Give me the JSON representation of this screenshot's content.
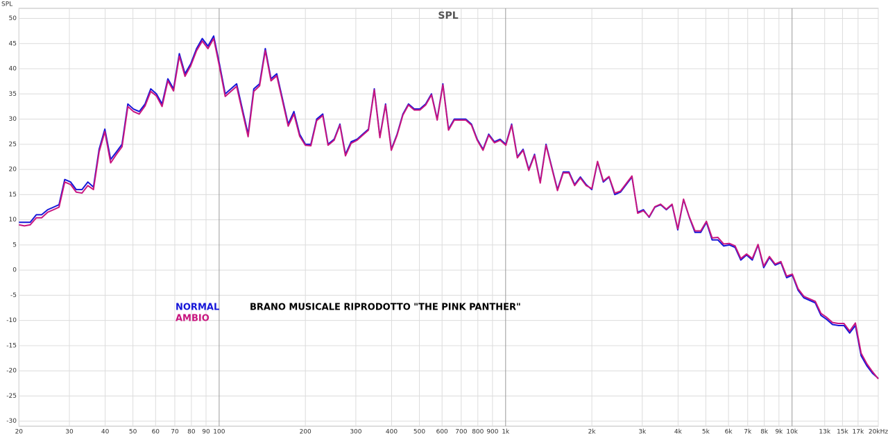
{
  "chart_data": {
    "type": "line",
    "title": "SPL",
    "y_label": "SPL",
    "annotation": "BRANO MUSICALE RIPRODOTTO \"THE PINK PANTHER\"",
    "xscale": "log",
    "grid": true,
    "xlim": [
      20,
      20000
    ],
    "ylim": [
      -31,
      52
    ],
    "xticks": [
      20,
      30,
      40,
      50,
      60,
      70,
      80,
      90,
      100,
      200,
      300,
      400,
      500,
      600,
      700,
      800,
      900,
      {
        "value": 1000,
        "label": "1k"
      },
      {
        "value": 2000,
        "label": "2k"
      },
      {
        "value": 3000,
        "label": "3k"
      },
      {
        "value": 4000,
        "label": "4k"
      },
      {
        "value": 5000,
        "label": "5k"
      },
      {
        "value": 6000,
        "label": "6k"
      },
      {
        "value": 7000,
        "label": "7k"
      },
      {
        "value": 8000,
        "label": "8k"
      },
      {
        "value": 9000,
        "label": "9k"
      },
      {
        "value": 10000,
        "label": "10k"
      },
      {
        "value": 13000,
        "label": "13k"
      },
      {
        "value": 15000,
        "label": "15k"
      },
      {
        "value": 17000,
        "label": "17k"
      },
      {
        "value": 20000,
        "label": "20kHz"
      }
    ],
    "yticks": [
      -30,
      -25,
      -20,
      -15,
      -10,
      -5,
      0,
      5,
      10,
      15,
      20,
      25,
      30,
      35,
      40,
      45,
      50
    ],
    "x": [
      20,
      20.9,
      21.9,
      23,
      24,
      25.2,
      26.4,
      27.6,
      28.9,
      30.3,
      31.7,
      33.2,
      34.8,
      36.4,
      38.1,
      39.9,
      41.8,
      43.8,
      45.8,
      48,
      50.2,
      52.6,
      55.1,
      57.7,
      60.4,
      63.2,
      66.2,
      69.3,
      72.6,
      76,
      79.6,
      83.4,
      87.3,
      91.4,
      95.7,
      100.2,
      105,
      109.9,
      115.1,
      120.5,
      126.2,
      132.1,
      138.4,
      144.9,
      151.7,
      158.9,
      166.4,
      174.2,
      182.4,
      191,
      200,
      209,
      219,
      230,
      240,
      252,
      264,
      276,
      289,
      303,
      317,
      332,
      348,
      364,
      381,
      399,
      418,
      438,
      458,
      480,
      502,
      526,
      551,
      577,
      604,
      632,
      662,
      693,
      726,
      760,
      796,
      834,
      873,
      914,
      957,
      1002,
      1050,
      1099,
      1151,
      1205,
      1262,
      1321,
      1384,
      1449,
      1517,
      1589,
      1664,
      1742,
      1824,
      1910,
      2000,
      2094,
      2193,
      2296,
      2405,
      2518,
      2637,
      2761,
      2891,
      3027,
      3170,
      3320,
      3476,
      3640,
      3812,
      3991,
      4180,
      4377,
      4583,
      4799,
      5024,
      5261,
      5509,
      5769,
      6041,
      6326,
      6624,
      6937,
      7264,
      7607,
      7962,
      8338,
      8730,
      9142,
      9573,
      10024,
      10497,
      10992,
      11510,
      12052,
      12620,
      13216,
      13839,
      14491,
      15174,
      15889,
      16638,
      17423,
      18243,
      19104,
      20000
    ],
    "series": [
      {
        "name": "NORMAL",
        "color": "#1616d8",
        "values": [
          9.5,
          9.5,
          9.5,
          11,
          11,
          12,
          12.5,
          13,
          18,
          17.5,
          16,
          16,
          17.5,
          16.5,
          24,
          28,
          22,
          23.5,
          25,
          33,
          32,
          31.5,
          33,
          36,
          35,
          33,
          38,
          36,
          43,
          39,
          41,
          44,
          46,
          44.5,
          46.5,
          41,
          35,
          36,
          37,
          32,
          27,
          36,
          37,
          44,
          38,
          39,
          34,
          29,
          31.5,
          27,
          25,
          25,
          30,
          31,
          25,
          26,
          29,
          23,
          25.5,
          26,
          27,
          28,
          36,
          26.5,
          33,
          24,
          27,
          31,
          33,
          32,
          32,
          33,
          35,
          30,
          37,
          28,
          30,
          30,
          30,
          29,
          26,
          24,
          27,
          25.5,
          26,
          25,
          29,
          22.5,
          24,
          20,
          23,
          17.5,
          25,
          20.5,
          16,
          19.5,
          19.5,
          17,
          18.5,
          17,
          16,
          21.5,
          17.5,
          18.5,
          15,
          15.5,
          17,
          18.5,
          11.5,
          12,
          10.5,
          12.5,
          13,
          12,
          13,
          8,
          14,
          10.5,
          7.5,
          7.5,
          9.5,
          6,
          6,
          4.8,
          5,
          4.5,
          2,
          3,
          2,
          5,
          0.5,
          2.5,
          1,
          1.5,
          -1.5,
          -1,
          -4,
          -5.5,
          -6,
          -6.5,
          -9,
          -9.8,
          -10.8,
          -11,
          -11,
          -12.5,
          -11,
          -17,
          -19,
          -20.5,
          -21.5
        ]
      },
      {
        "name": "AMBIO",
        "color": "#c8157f",
        "values": [
          9,
          8.8,
          9,
          10.4,
          10.4,
          11.5,
          12,
          12.5,
          17.5,
          17,
          15.5,
          15.3,
          16.8,
          16,
          23.5,
          27.5,
          21.3,
          23,
          24.5,
          32.5,
          31.5,
          31,
          32.6,
          35.5,
          34.6,
          32.5,
          37.6,
          35.6,
          42.5,
          38.5,
          40.6,
          43.6,
          45.5,
          44,
          46,
          40.5,
          34.5,
          35.5,
          36.5,
          31.5,
          26.5,
          35.5,
          36.6,
          43.6,
          37.6,
          38.6,
          33.6,
          28.6,
          31,
          26.6,
          24.8,
          24.7,
          29.7,
          30.7,
          24.8,
          25.8,
          28.8,
          22.7,
          25.2,
          25.8,
          26.8,
          27.8,
          35.8,
          26.3,
          32.8,
          23.8,
          26.8,
          30.8,
          32.8,
          31.8,
          31.8,
          32.8,
          34.8,
          29.8,
          36.8,
          27.8,
          29.8,
          29.8,
          29.8,
          28.8,
          25.8,
          23.8,
          26.8,
          25.3,
          25.8,
          24.8,
          28.8,
          22.3,
          23.8,
          19.8,
          22.8,
          17.3,
          24.8,
          20.3,
          15.8,
          19.3,
          19.3,
          16.8,
          18.3,
          16.8,
          16.2,
          21.6,
          17.7,
          18.6,
          15.3,
          15.7,
          17.2,
          18.7,
          11.3,
          11.8,
          10.6,
          12.6,
          13.1,
          12.1,
          13.1,
          8.2,
          14.1,
          10.6,
          7.8,
          7.8,
          9.7,
          6.4,
          6.5,
          5.2,
          5.3,
          4.8,
          2.3,
          3.2,
          2.3,
          5.1,
          0.8,
          2.7,
          1.2,
          1.7,
          -1.2,
          -0.8,
          -3.7,
          -5.2,
          -5.7,
          -6.2,
          -8.6,
          -9.4,
          -10.4,
          -10.6,
          -10.6,
          -12.1,
          -10.5,
          -16.5,
          -18.6,
          -20.2,
          -21.6
        ]
      }
    ]
  }
}
